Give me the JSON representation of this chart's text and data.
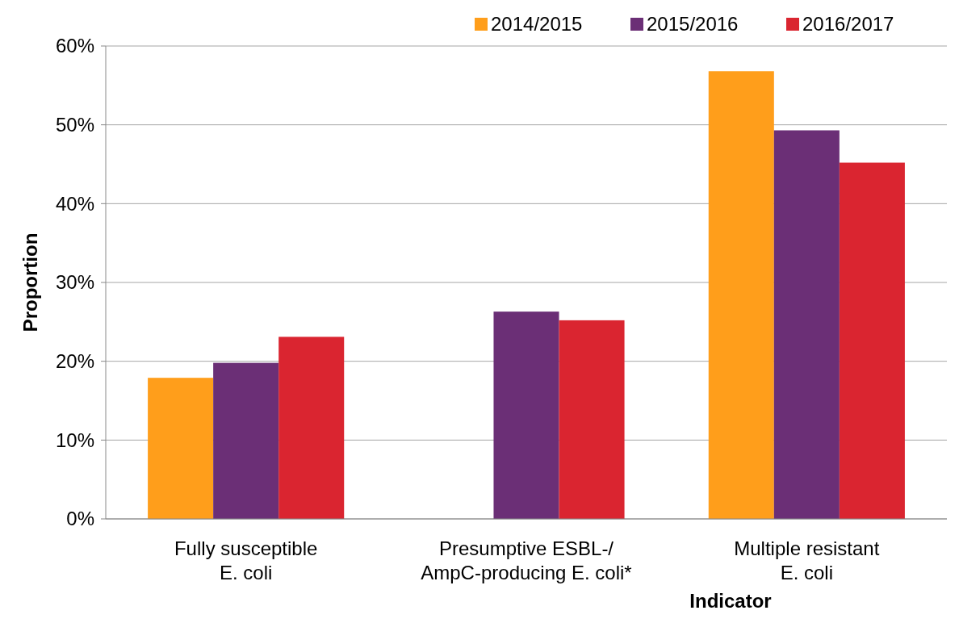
{
  "chart_data": {
    "type": "bar",
    "xlabel": "Indicator",
    "ylabel": "Proportion",
    "categories": [
      "Fully susceptible\nE. coli",
      "Presumptive ESBL-/\nAmpC-producing E. coli*",
      "Multiple resistant\nE. coli"
    ],
    "series": [
      {
        "name": "2014/2015",
        "color": "#ff9e1b",
        "values": [
          17.9,
          null,
          56.8
        ]
      },
      {
        "name": "2015/2016",
        "color": "#6b2f76",
        "values": [
          19.8,
          26.3,
          49.3
        ]
      },
      {
        "name": "2016/2017",
        "color": "#da2530",
        "values": [
          23.1,
          25.2,
          45.2
        ]
      }
    ],
    "ylim": [
      0,
      60
    ],
    "yticks": [
      {
        "value": 0,
        "label": "0%"
      },
      {
        "value": 10,
        "label": "10%"
      },
      {
        "value": 20,
        "label": "20%"
      },
      {
        "value": 30,
        "label": "30%"
      },
      {
        "value": 40,
        "label": "40%"
      },
      {
        "value": 50,
        "label": "50%"
      },
      {
        "value": 60,
        "label": "60%"
      }
    ],
    "grid": "y",
    "legend": "top right"
  }
}
